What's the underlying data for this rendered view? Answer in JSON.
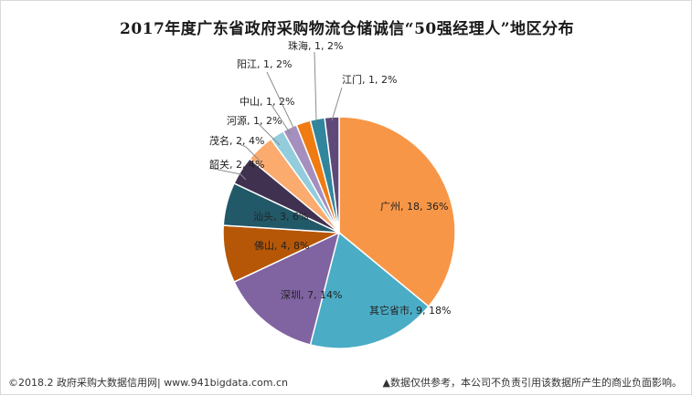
{
  "chart_data": {
    "type": "pie",
    "title": "2017年度广东省政府采购物流仓储诚信“50强经理人”地区分布",
    "slices": [
      {
        "label": "广州",
        "value": 18,
        "percent": "36%",
        "color": "#f79646"
      },
      {
        "label": "其它省市",
        "value": 9,
        "percent": "18%",
        "color": "#4bacc6"
      },
      {
        "label": "深圳",
        "value": 7,
        "percent": "14%",
        "color": "#8064a2"
      },
      {
        "label": "佛山",
        "value": 4,
        "percent": "8%",
        "color": "#b65708"
      },
      {
        "label": "汕头",
        "value": 3,
        "percent": "6%",
        "color": "#215968"
      },
      {
        "label": "韶关",
        "value": 2,
        "percent": "4%",
        "color": "#403151"
      },
      {
        "label": "茂名",
        "value": 2,
        "percent": "4%",
        "color": "#fcab6e"
      },
      {
        "label": "河源",
        "value": 1,
        "percent": "2%",
        "color": "#93cddd"
      },
      {
        "label": "中山",
        "value": 1,
        "percent": "2%",
        "color": "#a48fbe"
      },
      {
        "label": "阳江",
        "value": 1,
        "percent": "2%",
        "color": "#f07c11"
      },
      {
        "label": "珠海",
        "value": 1,
        "percent": "2%",
        "color": "#31859c"
      },
      {
        "label": "江门",
        "value": 1,
        "percent": "2%",
        "color": "#5f497a"
      }
    ]
  },
  "footer": {
    "left": "©2018.2 政府采购大数据信用网| www.941bigdata.com.cn",
    "right": "▲数据仅供参考，本公司不负责引用该数据所产生的商业负面影响。"
  }
}
